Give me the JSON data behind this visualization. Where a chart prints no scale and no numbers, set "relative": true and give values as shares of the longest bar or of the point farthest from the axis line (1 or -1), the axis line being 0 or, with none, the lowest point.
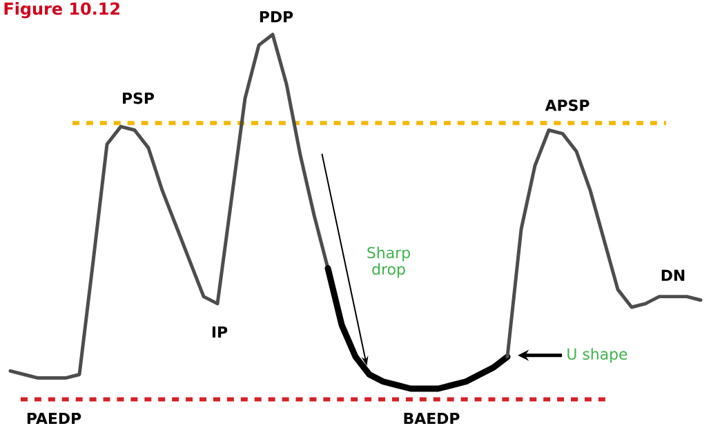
{
  "chart_data": {
    "type": "line",
    "relative": true,
    "title": "Figure 10.12",
    "categories": [
      null,
      null,
      null,
      null,
      null,
      null,
      null,
      null,
      null,
      null,
      null,
      null,
      null,
      null,
      null,
      null,
      null,
      null,
      null,
      null,
      null,
      null,
      null,
      null,
      null,
      null,
      null,
      null,
      null,
      null,
      null,
      null,
      null,
      null,
      null,
      null,
      null,
      null,
      null,
      null,
      null,
      null,
      null,
      null,
      null,
      null,
      null,
      null,
      null,
      null,
      null
    ],
    "series": [
      {
        "color": "#4d4d4d",
        "values": [
          0.05,
          0.04,
          0.03,
          0.03,
          0.03,
          0.04,
          0.36,
          0.69,
          0.74,
          0.73,
          0.68,
          0.56,
          0.46,
          0.36,
          0.26,
          0.24,
          0.53,
          0.82,
          0.97,
          1.0,
          0.86,
          0.66,
          0.49,
          0.34,
          null,
          null,
          null,
          null,
          null,
          null,
          null,
          null,
          null,
          null,
          null,
          null,
          null,
          null,
          null,
          null,
          null,
          null,
          null,
          null,
          null,
          null,
          null,
          null,
          null,
          null,
          null
        ]
      },
      {
        "color": "#000000",
        "values": [
          null,
          null,
          null,
          null,
          null,
          null,
          null,
          null,
          null,
          null,
          null,
          null,
          null,
          null,
          null,
          null,
          null,
          null,
          null,
          null,
          null,
          null,
          null,
          0.34,
          0.18,
          0.09,
          0.04,
          0.02,
          0.01,
          0.0,
          0,
          0,
          0.01,
          0.02,
          0.04,
          0.06,
          0.09,
          null,
          null,
          null,
          null,
          null,
          null,
          null,
          null,
          null,
          null,
          null,
          null,
          null,
          null
        ]
      },
      {
        "color": "#4d4d4d",
        "values": [
          null,
          null,
          null,
          null,
          null,
          null,
          null,
          null,
          null,
          null,
          null,
          null,
          null,
          null,
          null,
          null,
          null,
          null,
          null,
          null,
          null,
          null,
          null,
          null,
          null,
          null,
          null,
          null,
          null,
          null,
          null,
          null,
          null,
          null,
          null,
          null,
          0.09,
          0.45,
          0.63,
          0.73,
          0.72,
          0.67,
          0.56,
          0.42,
          0.28,
          0.23,
          0.24,
          0.26,
          0.26,
          0.26,
          0.25
        ]
      }
    ],
    "ref_lines": [
      {
        "axis": "y",
        "value": 0.75,
        "color": "#f5b800",
        "line_style": "dashed"
      },
      {
        "axis": "y",
        "value": -0.03,
        "color": "#d62027",
        "line_style": "dashed"
      }
    ],
    "annotations": [
      "PSP",
      "PDP",
      "APSP",
      "IP",
      "DN",
      "PAEDP",
      "BAEDP",
      "Sharp drop",
      "U shape"
    ]
  }
}
